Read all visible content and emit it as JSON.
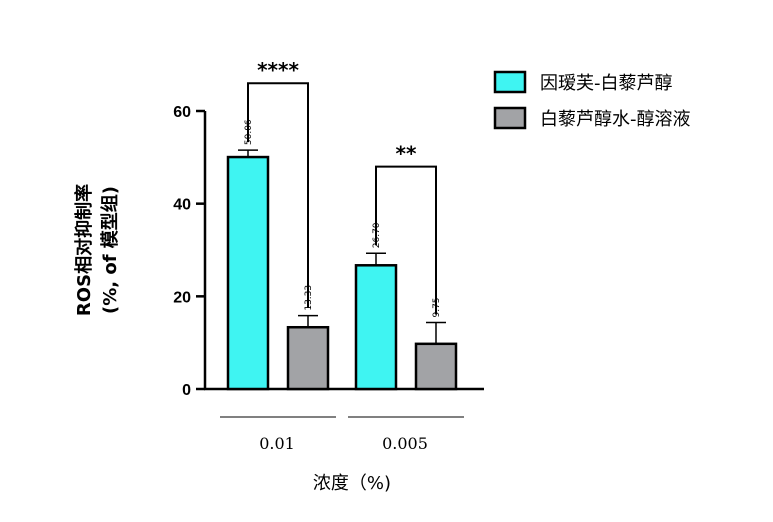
{
  "chart_data": {
    "type": "bar",
    "ylabel_line1": "ROS相对抑制率",
    "ylabel_line2": "(%, of 模型组)",
    "xlabel": "浓度（%)",
    "categories": [
      "0.01",
      "0.005"
    ],
    "ylim": [
      0,
      60
    ],
    "yticks": [
      0,
      20,
      40,
      60
    ],
    "series": [
      {
        "name": "因瑷芙-白藜芦醇",
        "color": "#3ff4f2",
        "values": [
          50.06,
          26.7
        ],
        "value_labels": [
          "50.06",
          "26.70"
        ],
        "errors": [
          1.5,
          2.6
        ]
      },
      {
        "name": "白藜芦醇水-醇溶液",
        "color": "#a2a3a6",
        "values": [
          13.33,
          9.75
        ],
        "value_labels": [
          "13.33",
          "9.75"
        ],
        "errors": [
          2.5,
          4.6
        ]
      }
    ],
    "significance": [
      {
        "category": 0,
        "label": "****",
        "level": 66
      },
      {
        "category": 1,
        "label": "**",
        "level": 48
      }
    ],
    "legend_position": "top-right",
    "grid": false
  }
}
